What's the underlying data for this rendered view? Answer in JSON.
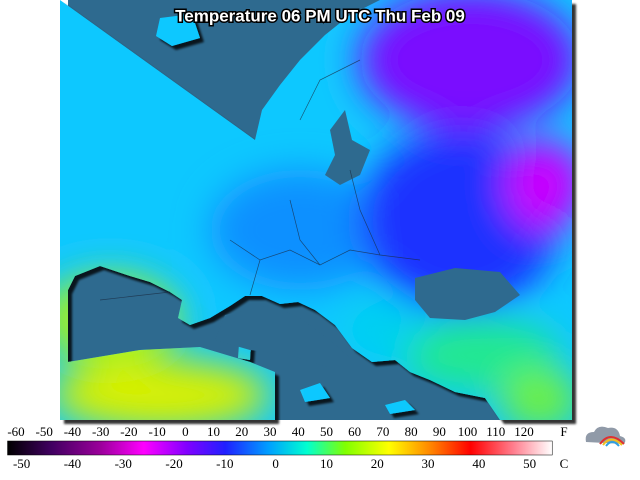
{
  "title": "Temperature 06 PM UTC Thu Feb 09",
  "legend": {
    "fahrenheit": {
      "unit": "F",
      "ticks": [
        -60,
        -50,
        -40,
        -30,
        -20,
        -10,
        0,
        10,
        20,
        30,
        40,
        50,
        60,
        70,
        80,
        90,
        100,
        110,
        120
      ]
    },
    "celsius": {
      "unit": "C",
      "ticks": [
        -50,
        -40,
        -30,
        -20,
        -10,
        0,
        10,
        20,
        30,
        40,
        50
      ]
    }
  }
}
